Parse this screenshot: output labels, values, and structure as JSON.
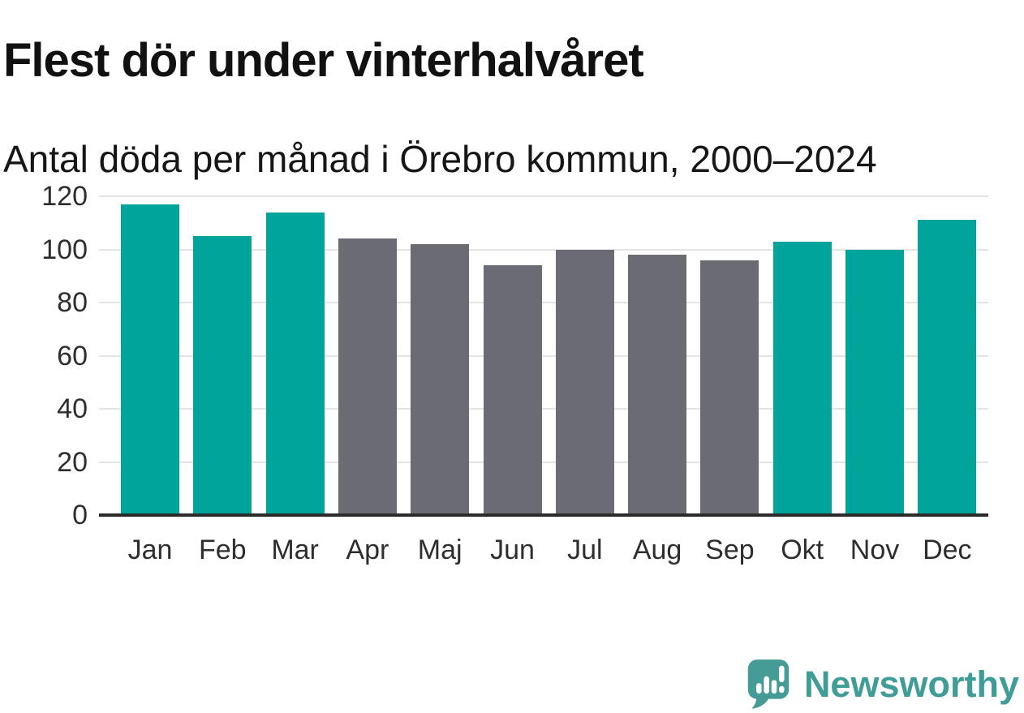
{
  "chart_data": {
    "type": "bar",
    "title": "Flest dör under vinterhalvåret",
    "subtitle": "Antal döda per månad i Örebro kommun, 2000–2024",
    "categories": [
      "Jan",
      "Feb",
      "Mar",
      "Apr",
      "Maj",
      "Jun",
      "Jul",
      "Aug",
      "Sep",
      "Okt",
      "Nov",
      "Dec"
    ],
    "values": [
      117,
      105,
      114,
      104,
      102,
      94,
      100,
      98,
      96,
      103,
      100,
      111
    ],
    "point_groups": [
      "winter",
      "winter",
      "winter",
      "summer",
      "summer",
      "summer",
      "summer",
      "summer",
      "summer",
      "winter",
      "winter",
      "winter"
    ],
    "colors": {
      "winter": "#00a49a",
      "summer": "#6b6b73"
    },
    "xlabel": "",
    "ylabel": "",
    "ylim": [
      0,
      120
    ],
    "yticks": [
      0,
      20,
      40,
      60,
      80,
      100,
      120
    ],
    "grid": true,
    "legend": "none"
  },
  "style_colors": {
    "gridline": "#e4e4e4",
    "axis_line": "#2b2b2b",
    "axis_text": "#2e2e2e",
    "title_text": "#111111",
    "brand_teal": "#3f9c96"
  },
  "footer": {
    "brand": "Newsworthy",
    "logo_icon": "newsworthy-speech-bubble-bar-chart-icon"
  }
}
